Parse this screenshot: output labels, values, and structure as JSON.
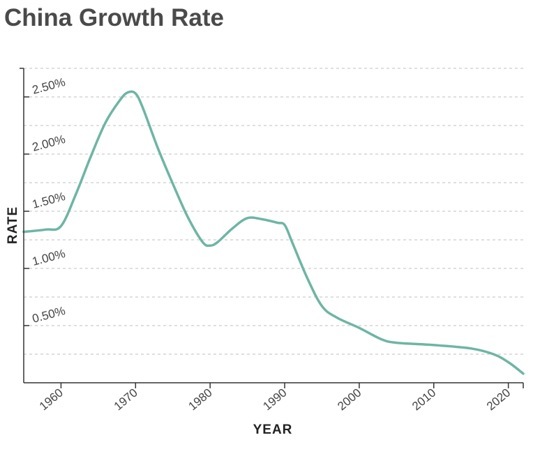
{
  "chart_data": {
    "type": "line",
    "title": "China Growth Rate",
    "xlabel": "YEAR",
    "ylabel": "RATE",
    "xlim": [
      1955,
      2022
    ],
    "ylim": [
      0.0,
      2.75
    ],
    "x_ticks": [
      1960,
      1970,
      1980,
      1990,
      2000,
      2010,
      2020
    ],
    "x_tick_labels": [
      "1960",
      "1970",
      "1980",
      "1990",
      "2000",
      "2010",
      "2020"
    ],
    "y_ticks": [
      0.5,
      1.0,
      1.5,
      2.0,
      2.5
    ],
    "y_tick_labels": [
      "0.50%",
      "1.00%",
      "1.50%",
      "2.00%",
      "2.50%"
    ],
    "grid": true,
    "line_color": "#6db5a4",
    "series": [
      {
        "x": [
          1955,
          1958,
          1960,
          1962,
          1964,
          1966,
          1968,
          1969,
          1970,
          1971,
          1973,
          1975,
          1977,
          1979,
          1980,
          1981,
          1983,
          1985,
          1987,
          1989,
          1990,
          1991,
          1993,
          1995,
          1997,
          2000,
          2003,
          2005,
          2010,
          2015,
          2018,
          2020,
          2022
        ],
        "y": [
          1.32,
          1.34,
          1.37,
          1.65,
          1.98,
          2.28,
          2.48,
          2.54,
          2.53,
          2.4,
          2.05,
          1.74,
          1.45,
          1.23,
          1.2,
          1.23,
          1.35,
          1.44,
          1.43,
          1.4,
          1.38,
          1.23,
          0.92,
          0.67,
          0.57,
          0.48,
          0.38,
          0.35,
          0.33,
          0.3,
          0.25,
          0.18,
          0.08
        ]
      }
    ]
  }
}
